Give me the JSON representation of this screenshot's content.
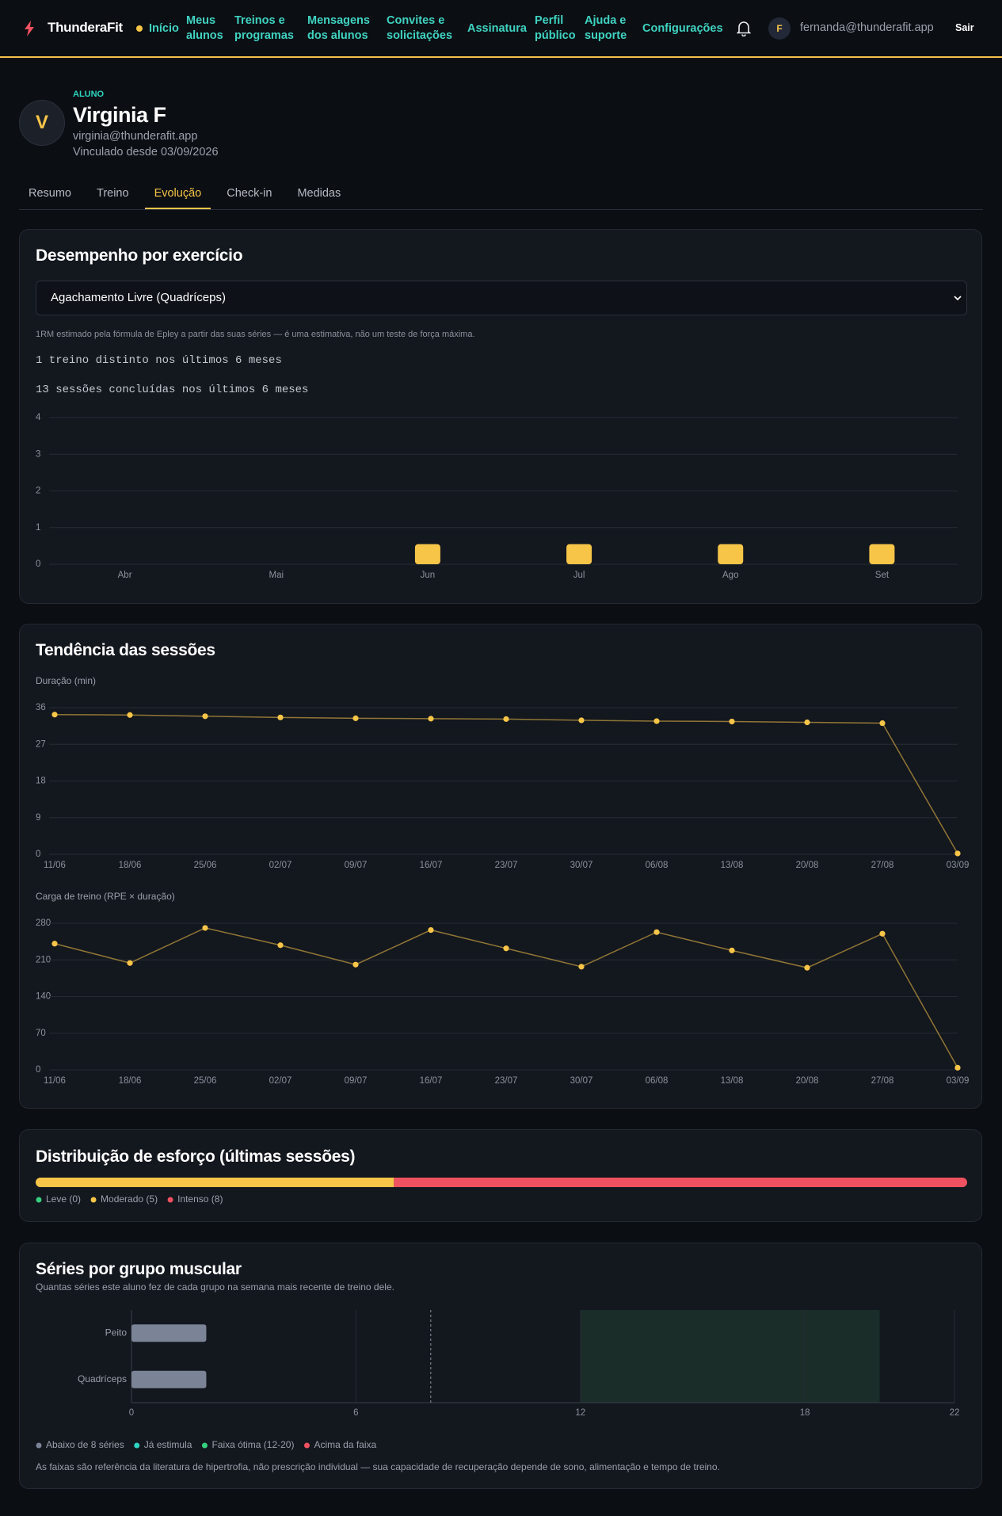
{
  "nav": {
    "brand": "ThunderaFit",
    "links": [
      "Início",
      "Meus alunos",
      "Treinos e programas",
      "Mensagens dos alunos",
      "Convites e solicitações",
      "Assinatura",
      "Perfil público",
      "Ajuda e suporte",
      "Configurações"
    ],
    "avatar": "F",
    "email": "fernanda@thunderafit.app",
    "logout": "Sair"
  },
  "profile": {
    "avatar": "V",
    "role": "ALUNO",
    "name": "Virginia F",
    "email": "virginia@thunderafit.app",
    "since": "Vinculado desde 03/09/2026"
  },
  "tabs": {
    "items": [
      "Resumo",
      "Treino",
      "Evolução",
      "Check-in",
      "Medidas"
    ],
    "active": 2
  },
  "performance": {
    "title": "Desempenho por exercício",
    "exercise": "Agachamento Livre (Quadríceps)",
    "note": "1RM estimado pela fórmula de Epley a partir das suas séries — é uma estimativa, não um teste de força máxima.",
    "stats": [
      "1 treino distinto nos últimos 6 meses",
      "13 sessões concluídas nos últimos 6 meses"
    ],
    "chart": {
      "type": "bar",
      "categories": [
        "Abr",
        "Mai",
        "Jun",
        "Jul",
        "Ago",
        "Set"
      ],
      "values": [
        0,
        0,
        0.55,
        0.55,
        0.55,
        0.55
      ],
      "color": "#f7c548",
      "ylim": [
        0,
        4
      ],
      "yticks": [
        0,
        1,
        2,
        3,
        4
      ],
      "grid": true
    }
  },
  "sessions": {
    "title": "Tendência das sessões",
    "charts": [
      {
        "type": "line",
        "ylabel": "Duração (min)",
        "categories": [
          "11/06",
          "18/06",
          "25/06",
          "02/07",
          "09/07",
          "16/07",
          "23/07",
          "30/07",
          "06/08",
          "13/08",
          "20/08",
          "27/08",
          "03/09"
        ],
        "values": [
          34.3,
          34.2,
          33.9,
          33.6,
          33.4,
          33.3,
          33.2,
          32.9,
          32.7,
          32.6,
          32.4,
          32.2,
          0.2
        ],
        "color": "#f7c548",
        "ylim": [
          0,
          36
        ],
        "yticks": [
          0,
          9,
          18,
          27,
          36
        ],
        "grid": true
      },
      {
        "type": "line",
        "ylabel": "Carga de treino (RPE × duração)",
        "categories": [
          "11/06",
          "18/06",
          "25/06",
          "02/07",
          "09/07",
          "16/07",
          "23/07",
          "30/07",
          "06/08",
          "13/08",
          "20/08",
          "27/08",
          "03/09"
        ],
        "values": [
          241,
          204,
          271,
          238,
          201,
          267,
          232,
          197,
          263,
          228,
          195,
          260,
          4
        ],
        "color": "#f7c548",
        "ylim": [
          0,
          280
        ],
        "yticks": [
          0,
          70,
          140,
          210,
          280
        ],
        "grid": true
      }
    ]
  },
  "effort": {
    "title": "Distribuição de esforço (últimas sessões)",
    "chart": {
      "type": "stacked_bar",
      "series": [
        {
          "name": "Leve (0)",
          "color": "#35d07f",
          "values": [
            0
          ]
        },
        {
          "name": "Moderado (5)",
          "color": "#f7c548",
          "values": [
            5
          ]
        },
        {
          "name": "Intenso (8)",
          "color": "#ef5160",
          "values": [
            8
          ]
        }
      ]
    }
  },
  "muscle": {
    "title": "Séries por grupo muscular",
    "subtitle": "Quantas séries este aluno fez de cada grupo na semana mais recente de treino dele.",
    "chart": {
      "type": "hbar",
      "categories": [
        "Peito",
        "Quadríceps"
      ],
      "values": [
        2,
        2
      ],
      "color": "#7b8497",
      "xlim": [
        0,
        22
      ],
      "xticks": [
        0,
        6,
        12,
        18,
        22
      ],
      "threshold": 8,
      "optimal_range": [
        12,
        20
      ],
      "legend": [
        {
          "name": "Abaixo de 8 séries",
          "color": "#7b8497"
        },
        {
          "name": "Já estimula",
          "color": "#2dd4bf"
        },
        {
          "name": "Faixa ótima (12-20)",
          "color": "#35d07f"
        },
        {
          "name": "Acima da faixa",
          "color": "#ef5160"
        }
      ]
    },
    "footnote": "As faixas são referência da literatura de hipertrofia, não prescrição individual — sua capacidade de recuperação depende de sono, alimentação e tempo de treino."
  }
}
